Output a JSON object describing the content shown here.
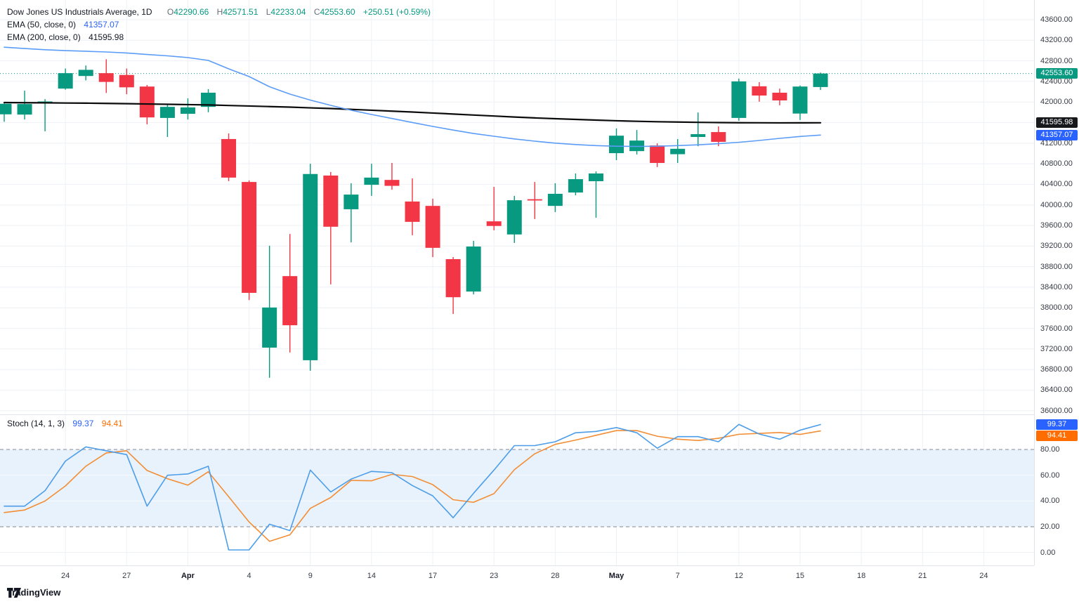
{
  "legend": {
    "title": "Dow Jones US Industrials Average, 1D",
    "o_label": "O",
    "o": "42290.66",
    "h_label": "H",
    "h": "42571.51",
    "l_label": "L",
    "l": "42233.04",
    "c_label": "C",
    "c": "42553.60",
    "change": "+250.51 (+0.59%)",
    "ema50_label": "EMA (50, close, 0)",
    "ema50_value": "41357.07",
    "ema200_label": "EMA (200, close, 0)",
    "ema200_value": "41595.98",
    "stoch_label": "Stoch (14, 1, 3)",
    "stoch_k": "99.37",
    "stoch_d": "94.41"
  },
  "colors": {
    "up": "#089981",
    "down": "#F23645",
    "ema50": "#5B9CF6",
    "ema200": "#0B0B0B",
    "stoch_k": "#4D9DE8",
    "stoch_d": "#F28E35",
    "badge_last": "#089981",
    "badge_ema200": "#16181C",
    "badge_ema50": "#2962FF",
    "badge_k": "#2962FF",
    "badge_d": "#FF6D00",
    "grid": "#EEF1F6",
    "band_fill": "#E8F2FC",
    "band_border": "#9AA0AB"
  },
  "price_axis": {
    "max": 43600,
    "min": 36000,
    "step": 400,
    "badges": {
      "last": "42553.60",
      "ema200": "41595.98",
      "ema50": "41357.07"
    }
  },
  "stoch_axis": {
    "labels": [
      80,
      60,
      40,
      20,
      0
    ],
    "band": [
      20,
      80
    ],
    "badges": {
      "k": "99.37",
      "d": "94.41"
    }
  },
  "time_axis": {
    "ticks": [
      {
        "slot": 3,
        "label": "24",
        "month": false
      },
      {
        "slot": 6,
        "label": "27",
        "month": false
      },
      {
        "slot": 9,
        "label": "Apr",
        "month": true
      },
      {
        "slot": 12,
        "label": "4",
        "month": false
      },
      {
        "slot": 15,
        "label": "9",
        "month": false
      },
      {
        "slot": 18,
        "label": "14",
        "month": false
      },
      {
        "slot": 21,
        "label": "17",
        "month": false
      },
      {
        "slot": 24,
        "label": "23",
        "month": false
      },
      {
        "slot": 27,
        "label": "28",
        "month": false
      },
      {
        "slot": 30,
        "label": "May",
        "month": true
      },
      {
        "slot": 33,
        "label": "7",
        "month": false
      },
      {
        "slot": 36,
        "label": "12",
        "month": false
      },
      {
        "slot": 39,
        "label": "15",
        "month": false
      },
      {
        "slot": 42,
        "label": "18",
        "month": false
      },
      {
        "slot": 45,
        "label": "21",
        "month": false
      },
      {
        "slot": 48,
        "label": "24",
        "month": false
      }
    ]
  },
  "chart_data": {
    "type": "candlestick",
    "title": "Dow Jones US Industrials Average, 1D",
    "last_price": 42553.6,
    "ohlc_header": {
      "open": 42290.66,
      "high": 42571.51,
      "low": 42233.04,
      "close": 42553.6,
      "change": 250.51,
      "change_pct": 0.59
    },
    "candles": [
      [
        41760,
        41985,
        41615,
        41965
      ],
      [
        41755,
        42220,
        41660,
        41960
      ],
      [
        41975,
        42055,
        41430,
        42010
      ],
      [
        42260,
        42650,
        42240,
        42560
      ],
      [
        42505,
        42710,
        42420,
        42625
      ],
      [
        42560,
        42830,
        42175,
        42390
      ],
      [
        42525,
        42650,
        42150,
        42285
      ],
      [
        42300,
        42330,
        41565,
        41700
      ],
      [
        41690,
        41960,
        41320,
        41905
      ],
      [
        41770,
        42070,
        41660,
        41895
      ],
      [
        41905,
        42250,
        41800,
        42180
      ],
      [
        41280,
        41390,
        40460,
        40530
      ],
      [
        40445,
        40475,
        38150,
        38290
      ],
      [
        37225,
        39205,
        36640,
        38005
      ],
      [
        38615,
        39435,
        37130,
        37660
      ],
      [
        36980,
        40800,
        36775,
        40600
      ],
      [
        40570,
        40640,
        38455,
        39575
      ],
      [
        39915,
        40420,
        39270,
        40200
      ],
      [
        40390,
        40800,
        40175,
        40530
      ],
      [
        40485,
        40815,
        40295,
        40370
      ],
      [
        40065,
        40515,
        39410,
        39670
      ],
      [
        39980,
        40120,
        38985,
        39165
      ],
      [
        38945,
        38985,
        37880,
        38205
      ],
      [
        38315,
        39300,
        38260,
        39190
      ],
      [
        39680,
        40350,
        39505,
        39590
      ],
      [
        39425,
        40175,
        39260,
        40090
      ],
      [
        40110,
        40445,
        39725,
        40085
      ],
      [
        39980,
        40420,
        39860,
        40215
      ],
      [
        40240,
        40610,
        40185,
        40500
      ],
      [
        40460,
        40650,
        39750,
        40610
      ],
      [
        41005,
        41485,
        40870,
        41345
      ],
      [
        41045,
        41455,
        40980,
        41250
      ],
      [
        41155,
        41195,
        40735,
        40815
      ],
      [
        40985,
        41280,
        40815,
        41090
      ],
      [
        41320,
        41795,
        41140,
        41375
      ],
      [
        41415,
        41525,
        41140,
        41225
      ],
      [
        41690,
        42455,
        41635,
        42400
      ],
      [
        42305,
        42385,
        42005,
        42125
      ],
      [
        42180,
        42260,
        41935,
        42030
      ],
      [
        41775,
        42320,
        41650,
        42300
      ],
      [
        42290.66,
        42571.51,
        42233.04,
        42553.6
      ]
    ],
    "ema50": [
      43065,
      43040,
      43016,
      42999,
      42986,
      42972,
      42952,
      42924,
      42897,
      42863,
      42808,
      42644,
      42494,
      42296,
      42153,
      42037,
      41934,
      41839,
      41757,
      41679,
      41601,
      41525,
      41454,
      41388,
      41334,
      41282,
      41238,
      41200,
      41172,
      41152,
      41140,
      41136,
      41140,
      41152,
      41167,
      41189,
      41216,
      41252,
      41293,
      41330,
      41357.07
    ],
    "ema200": [
      41989,
      41986,
      41984,
      41980,
      41977,
      41972,
      41967,
      41961,
      41955,
      41949,
      41943,
      41932,
      41922,
      41911,
      41900,
      41886,
      41873,
      41856,
      41840,
      41822,
      41805,
      41785,
      41766,
      41746,
      41727,
      41708,
      41690,
      41675,
      41661,
      41648,
      41635,
      41625,
      41616,
      41610,
      41604,
      41600,
      41597,
      41595.5,
      41594,
      41595,
      41595.98
    ],
    "stoch_k": [
      36,
      36,
      48,
      71,
      82,
      79,
      76,
      36,
      60,
      61,
      67,
      2,
      2,
      22,
      17,
      64,
      47,
      57,
      63,
      62,
      52,
      44,
      27,
      46,
      64,
      83,
      83,
      86,
      93,
      94,
      97,
      93,
      81,
      90,
      90,
      86,
      99.5,
      92,
      88,
      95,
      99.37
    ],
    "stoch_d": [
      31,
      33,
      40,
      51.7,
      67,
      77.3,
      79,
      63.7,
      57.3,
      52.3,
      62.7,
      43.3,
      23.7,
      8.7,
      13.7,
      34.3,
      42.7,
      56,
      55.7,
      60.7,
      59,
      52.7,
      41,
      39,
      45.7,
      64.3,
      76.7,
      84,
      87.3,
      91,
      94.7,
      94.7,
      90.3,
      88,
      87,
      88.7,
      91.8,
      92.5,
      93.2,
      91.7,
      94.41
    ]
  },
  "branding": {
    "logo_text": "TradingView"
  }
}
